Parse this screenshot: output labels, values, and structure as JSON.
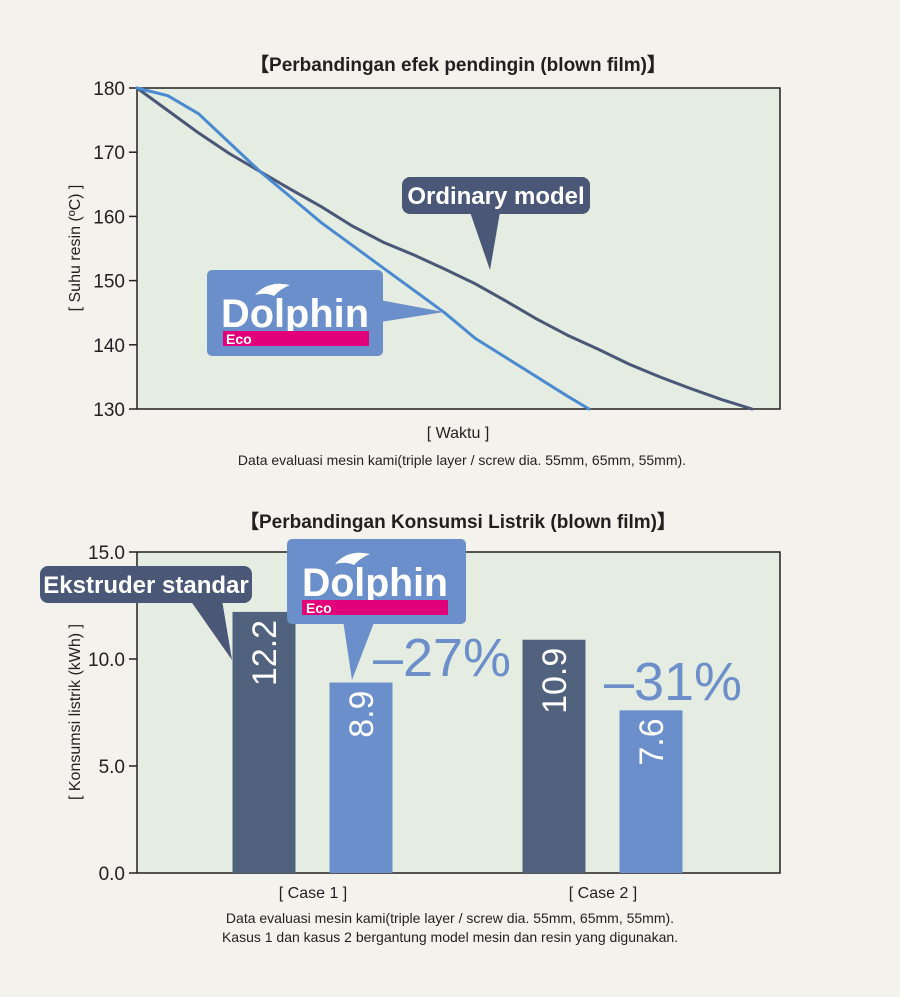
{
  "chart_data": [
    {
      "type": "line",
      "title": "【Perbandingan efek pendingin (blown film)】",
      "xlabel": "[ Waktu ]",
      "ylabel": "[ Suhu resin (ºC) ]",
      "ylim": [
        130,
        180
      ],
      "yticks": [
        "180",
        "170",
        "160",
        "150",
        "140",
        "130"
      ],
      "grid": false,
      "series": [
        {
          "name": "Ordinary model",
          "color": "#4a5777",
          "x": [
            0,
            5,
            10,
            15,
            20,
            25,
            30,
            35,
            40,
            45,
            50,
            55,
            60,
            65,
            70,
            75,
            80,
            85,
            90,
            95,
            100
          ],
          "y": [
            180,
            176.5,
            173,
            169.8,
            167,
            164.2,
            161.5,
            158.5,
            156,
            154,
            151.8,
            149.5,
            146.8,
            144,
            141.5,
            139.3,
            137,
            135,
            133.2,
            131.5,
            130
          ]
        },
        {
          "name": "Dolphin Eco",
          "color": "#4a8ad0",
          "x": [
            0,
            5,
            10,
            15,
            20,
            25,
            30,
            35,
            40,
            45,
            50,
            55,
            60,
            65,
            70,
            73.5
          ],
          "y": [
            180,
            178.8,
            176,
            171.5,
            167,
            163,
            159,
            155.5,
            152,
            148.5,
            145,
            141,
            138,
            135,
            132,
            130
          ]
        }
      ],
      "callouts": [
        {
          "text": "Ordinary model",
          "target_series": "Ordinary model"
        },
        {
          "text": "Dolphin",
          "sub": "Eco",
          "target_series": "Dolphin Eco"
        }
      ],
      "note": "Data evaluasi mesin kami(triple layer / screw dia. 55mm, 65mm, 55mm)."
    },
    {
      "type": "bar",
      "title": "【Perbandingan Konsumsi Listrik (blown film)】",
      "ylabel": "[ Konsumsi listrik (kWh) ]",
      "ylim": [
        0,
        15
      ],
      "yticks": [
        "15.0",
        "10.0",
        "5.0",
        "0.0"
      ],
      "categories": [
        "[ Case 1 ]",
        "[ Case 2 ]"
      ],
      "series": [
        {
          "name": "Ekstruder standar",
          "color": "#51627f",
          "values": [
            12.2,
            10.9
          ],
          "labels": [
            "12.2",
            "10.9"
          ]
        },
        {
          "name": "Dolphin Eco",
          "color": "#6b8fca",
          "values": [
            8.9,
            7.6
          ],
          "labels": [
            "8.9",
            "7.6"
          ]
        }
      ],
      "reductions": [
        "–27%",
        "–31%"
      ],
      "callouts": [
        {
          "text": "Ekstruder standar"
        },
        {
          "text": "Dolphin",
          "sub": "Eco"
        }
      ],
      "notes": [
        "Data evaluasi mesin kami(triple layer / screw dia. 55mm, 65mm, 55mm).",
        "Kasus 1 dan kasus 2 bergantung model mesin dan resin yang digunakan."
      ]
    }
  ],
  "colors": {
    "background": "#f4f2ec",
    "plot_bg": "#e5ece2",
    "callout_dark": "#4a5777",
    "callout_blue": "#6b8fca",
    "eco_pink": "#e2007a"
  }
}
